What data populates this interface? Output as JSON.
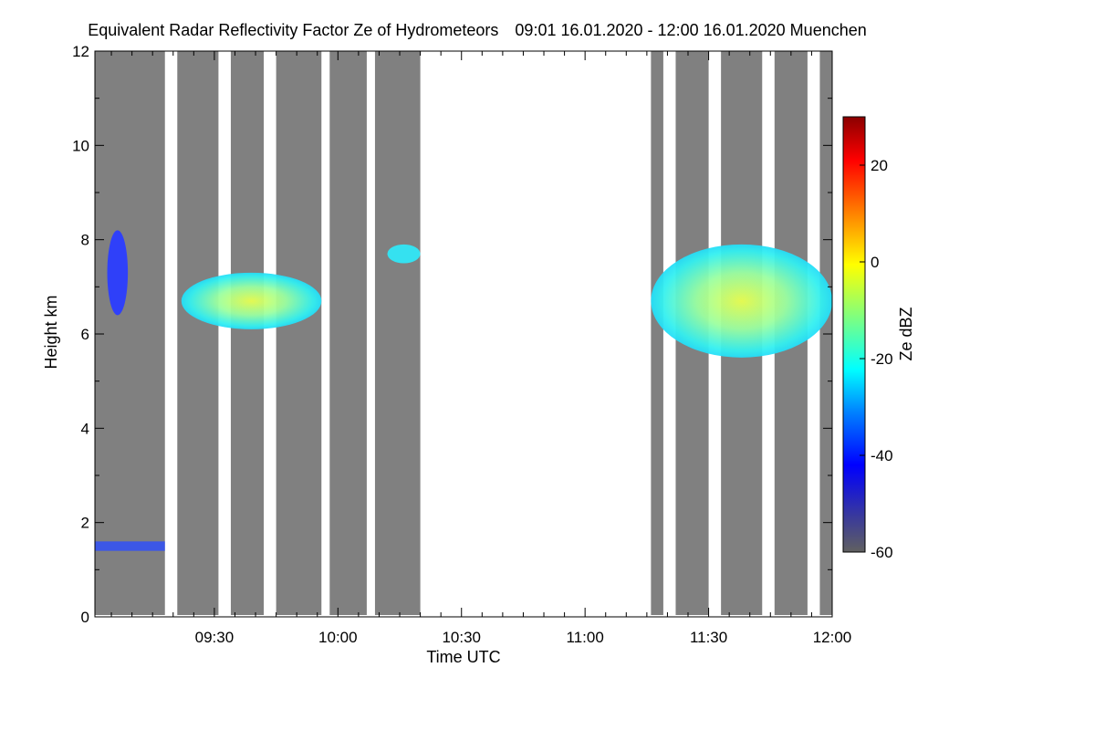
{
  "chart_data": {
    "type": "heatmap",
    "title": "Equivalent Radar Reflectivity Factor Ze of Hydrometeors",
    "subtitle": "09:01 16.01.2020 - 12:00 16.01.2020 Muenchen",
    "xlabel": "Time UTC",
    "ylabel": "Height km",
    "xlim": [
      "09:01",
      "12:00"
    ],
    "x_ticks": [
      {
        "t": "09:30",
        "label": "09:30"
      },
      {
        "t": "10:00",
        "label": "10:00"
      },
      {
        "t": "10:30",
        "label": "10:30"
      },
      {
        "t": "11:00",
        "label": "11:00"
      },
      {
        "t": "11:30",
        "label": "11:30"
      },
      {
        "t": "12:00",
        "label": "12:00"
      }
    ],
    "ylim": [
      0,
      12
    ],
    "y_ticks": [
      0,
      2,
      4,
      6,
      8,
      10,
      12
    ],
    "colorbar": {
      "label": "Ze dBZ",
      "range": [
        -60,
        30
      ],
      "ticks": [
        -60,
        -40,
        -20,
        0,
        20
      ],
      "colormap": [
        "#606060",
        "#0000c8",
        "#0000ff",
        "#00bfff",
        "#00ffff",
        "#7fff7f",
        "#ffff00",
        "#ff8000",
        "#ff0000",
        "#8b0000"
      ]
    },
    "background_color": "#808080",
    "measurement_periods": [
      [
        "09:01",
        "09:18"
      ],
      [
        "09:21",
        "09:31"
      ],
      [
        "09:34",
        "09:42"
      ],
      [
        "09:45",
        "09:56"
      ],
      [
        "09:58",
        "10:07"
      ],
      [
        "10:09",
        "10:20"
      ],
      [
        "11:16",
        "11:19"
      ],
      [
        "11:22",
        "11:30"
      ],
      [
        "11:33",
        "11:43"
      ],
      [
        "11:46",
        "11:54"
      ],
      [
        "11:57",
        "12:00"
      ]
    ],
    "cloud_layers": [
      {
        "t_start": "09:04",
        "t_end": "09:09",
        "h_bottom": 6.4,
        "h_top": 8.2,
        "ze": -35
      },
      {
        "t_start": "09:22",
        "t_end": "09:56",
        "h_bottom": 6.1,
        "h_top": 7.3,
        "ze": -15
      },
      {
        "t_start": "10:12",
        "t_end": "10:20",
        "h_bottom": 7.5,
        "h_top": 7.9,
        "ze": -25
      },
      {
        "t_start": "11:16",
        "t_end": "12:00",
        "h_bottom": 5.5,
        "h_top": 7.9,
        "ze": -12
      }
    ],
    "near_surface_echo": {
      "t_start": "09:01",
      "t_end": "09:18",
      "h_bottom": 1.4,
      "h_top": 1.6,
      "ze": -40
    }
  }
}
